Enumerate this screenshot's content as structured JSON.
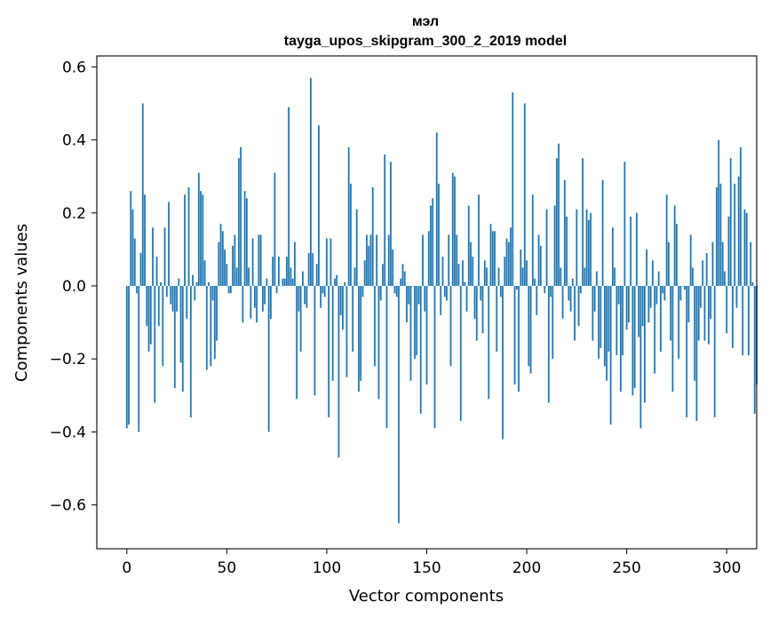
{
  "chart_data": {
    "type": "bar",
    "title_line1": "мэл",
    "title_line2": "tayga_upos_skipgram_300_2_2019 model",
    "xlabel": "Vector components",
    "ylabel": "Components values",
    "xlim": [
      -15,
      315
    ],
    "ylim": [
      -0.72,
      0.63
    ],
    "xticks": [
      0,
      50,
      100,
      150,
      200,
      250,
      300
    ],
    "yticks": [
      -0.6,
      -0.4,
      -0.2,
      0.0,
      0.2,
      0.4,
      0.6
    ],
    "ytick_labels": [
      "−0.6",
      "−0.4",
      "−0.2",
      "0.0",
      "0.2",
      "0.4",
      "0.6"
    ],
    "bar_color": "#1f77b4",
    "values": [
      -0.39,
      -0.38,
      0.26,
      0.21,
      0.13,
      -0.02,
      -0.4,
      0.09,
      0.5,
      0.25,
      -0.11,
      -0.18,
      -0.16,
      0.16,
      -0.32,
      0.08,
      -0.11,
      0.01,
      -0.22,
      0.16,
      -0.03,
      0.23,
      -0.05,
      -0.07,
      -0.28,
      -0.07,
      0.02,
      -0.21,
      -0.29,
      0.25,
      -0.09,
      0.27,
      -0.36,
      0.03,
      -0.04,
      0.01,
      0.31,
      0.26,
      0.25,
      0.07,
      -0.23,
      0.01,
      -0.22,
      -0.04,
      -0.2,
      -0.15,
      0.12,
      0.17,
      0.15,
      0.1,
      0.06,
      -0.02,
      -0.02,
      0.11,
      0.14,
      0.05,
      0.35,
      0.38,
      -0.1,
      0.26,
      0.24,
      0.05,
      -0.09,
      0.13,
      -0.06,
      -0.1,
      0.14,
      0.14,
      -0.07,
      -0.05,
      0.02,
      -0.4,
      -0.09,
      0.08,
      0.31,
      -0.02,
      0.08,
      0.0,
      0.02,
      0.02,
      0.08,
      0.49,
      0.05,
      0.02,
      0.12,
      -0.31,
      -0.07,
      -0.18,
      0.04,
      -0.05,
      -0.06,
      0.09,
      0.57,
      0.09,
      -0.3,
      0.06,
      0.44,
      -0.06,
      -0.02,
      -0.03,
      0.13,
      -0.36,
      0.13,
      -0.26,
      0.02,
      0.03,
      -0.47,
      -0.08,
      -0.12,
      0.01,
      -0.25,
      0.38,
      0.28,
      -0.18,
      0.05,
      0.21,
      -0.29,
      -0.26,
      -0.03,
      0.07,
      0.14,
      0.11,
      0.14,
      0.27,
      -0.22,
      0.14,
      -0.31,
      -0.04,
      0.06,
      0.36,
      -0.39,
      0.14,
      0.34,
      0.1,
      -0.02,
      -0.03,
      -0.65,
      0.02,
      0.06,
      0.04,
      -0.1,
      -0.05,
      -0.26,
      0.0,
      -0.2,
      -0.19,
      -0.05,
      -0.35,
      0.14,
      -0.07,
      -0.27,
      0.15,
      0.22,
      0.24,
      -0.39,
      0.42,
      0.28,
      -0.08,
      0.08,
      -0.03,
      -0.04,
      0.14,
      -0.22,
      0.31,
      0.3,
      0.14,
      0.06,
      -0.37,
      0.07,
      0.01,
      -0.07,
      0.22,
      0.12,
      0.08,
      -0.09,
      -0.15,
      0.25,
      -0.04,
      -0.13,
      0.07,
      0.05,
      -0.31,
      0.17,
      0.15,
      0.15,
      -0.18,
      0.05,
      -0.03,
      -0.42,
      0.08,
      0.13,
      0.12,
      0.16,
      0.53,
      -0.27,
      -0.01,
      -0.29,
      0.1,
      0.05,
      0.5,
      0.07,
      -0.22,
      -0.24,
      0.25,
      0.02,
      -0.08,
      0.14,
      0.11,
      0.0,
      -0.02,
      0.21,
      -0.32,
      -0.03,
      -0.2,
      0.22,
      0.35,
      0.39,
      0.05,
      -0.09,
      0.29,
      0.19,
      -0.04,
      -0.07,
      0.02,
      -0.15,
      0.21,
      -0.11,
      -0.02,
      0.35,
      0.05,
      0.21,
      0.18,
      0.2,
      -0.15,
      -0.07,
      0.04,
      -0.2,
      -0.17,
      0.29,
      -0.22,
      -0.26,
      -0.18,
      -0.38,
      0.16,
      0.05,
      -0.19,
      -0.05,
      -0.29,
      -0.19,
      0.34,
      -0.12,
      -0.1,
      0.19,
      -0.3,
      -0.28,
      0.2,
      -0.14,
      -0.39,
      -0.11,
      -0.32,
      0.1,
      -0.1,
      -0.06,
      0.07,
      -0.24,
      -0.05,
      0.04,
      -0.18,
      -0.02,
      -0.04,
      0.25,
      0.12,
      -0.15,
      -0.29,
      0.22,
      0.17,
      -0.2,
      -0.04,
      0.0,
      -0.01,
      -0.36,
      -0.1,
      0.14,
      0.05,
      -0.26,
      -0.37,
      -0.15,
      -0.06,
      0.07,
      -0.15,
      0.09,
      -0.16,
      -0.09,
      0.12,
      -0.36,
      0.27,
      0.4,
      0.28,
      0.12,
      0.04,
      -0.13,
      0.19,
      0.35,
      -0.17,
      0.28,
      -0.06,
      0.3,
      0.38,
      -0.19,
      0.21,
      0.2,
      -0.19,
      0.12,
      0.01,
      -0.35,
      -0.27
    ]
  }
}
